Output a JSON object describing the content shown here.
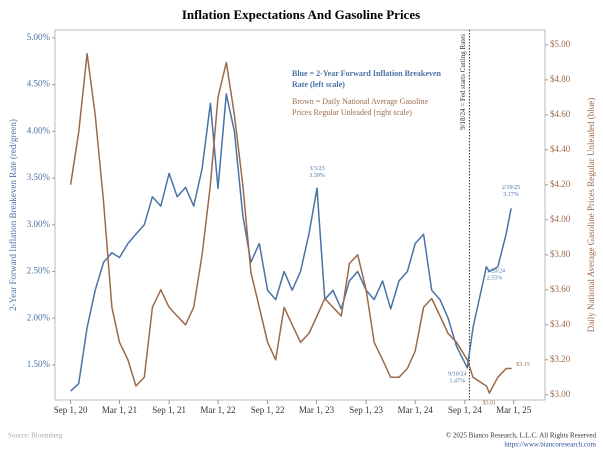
{
  "chart_data": {
    "type": "line",
    "title": "Inflation Expectations And Gasoline Prices",
    "y_label": "2-Year Forward Inflation Breakeven Rate (red/green)",
    "y2_label": "Daily National Average Gasoline Prices Regular Unleaded (blue)",
    "source": "Source: Bloomberg",
    "copyright": "© 2025 Bianco Research, L.L.C. All Rights Reserved",
    "url": "https://www.biancoresearch.com",
    "x": [
      "2020-09-01",
      "2020-10-01",
      "2020-11-01",
      "2020-12-01",
      "2021-01-01",
      "2021-02-01",
      "2021-03-01",
      "2021-04-01",
      "2021-05-01",
      "2021-06-01",
      "2021-07-01",
      "2021-08-01",
      "2021-09-01",
      "2021-10-01",
      "2021-11-01",
      "2021-12-01",
      "2022-01-01",
      "2022-02-01",
      "2022-03-01",
      "2022-04-01",
      "2022-05-01",
      "2022-06-01",
      "2022-07-01",
      "2022-08-01",
      "2022-09-01",
      "2022-10-01",
      "2022-11-01",
      "2022-12-01",
      "2023-01-01",
      "2023-02-01",
      "2023-03-03",
      "2023-04-01",
      "2023-05-01",
      "2023-06-01",
      "2023-07-01",
      "2023-08-01",
      "2023-09-01",
      "2023-10-01",
      "2023-11-01",
      "2023-12-01",
      "2024-01-01",
      "2024-02-01",
      "2024-03-01",
      "2024-04-01",
      "2024-05-01",
      "2024-06-01",
      "2024-07-01",
      "2024-08-01",
      "2024-09-10",
      "2024-10-01",
      "2024-11-20",
      "2024-12-01",
      "2025-01-01",
      "2025-02-01",
      "2025-02-19"
    ],
    "xlim": [
      "2020-07-05",
      "2025-06-25"
    ],
    "xticks": [
      {
        "value": "2020-09-01",
        "label": "Sep 1, 20"
      },
      {
        "value": "2021-03-01",
        "label": "Mar 1, 21"
      },
      {
        "value": "2021-09-01",
        "label": "Sep 1, 21"
      },
      {
        "value": "2022-03-01",
        "label": "Mar 1, 22"
      },
      {
        "value": "2022-09-01",
        "label": "Sep 1, 22"
      },
      {
        "value": "2023-03-01",
        "label": "Mar 1, 23"
      },
      {
        "value": "2023-09-01",
        "label": "Sep 1, 23"
      },
      {
        "value": "2024-03-01",
        "label": "Mar 1, 24"
      },
      {
        "value": "2024-09-01",
        "label": "Sep 1, 24"
      },
      {
        "value": "2025-03-01",
        "label": "Mar 1, 25"
      }
    ],
    "ylim": [
      1.125,
      5.085
    ],
    "yticks": [
      {
        "value": 1.5,
        "label": "1.50%"
      },
      {
        "value": 2,
        "label": "2.00%"
      },
      {
        "value": 2.5,
        "label": "2.50%"
      },
      {
        "value": 3,
        "label": "3.00%"
      },
      {
        "value": 3.5,
        "label": "3.50%"
      },
      {
        "value": 4,
        "label": "4.00%"
      },
      {
        "value": 4.5,
        "label": "4.50%"
      },
      {
        "value": 5,
        "label": "5.00%"
      }
    ],
    "y2lim": [
      2.97,
      5.085
    ],
    "y2ticks": [
      {
        "value": 3,
        "label": "$3.00"
      },
      {
        "value": 3.2,
        "label": "$3.20"
      },
      {
        "value": 3.4,
        "label": "$3.40"
      },
      {
        "value": 3.6,
        "label": "$3.60"
      },
      {
        "value": 3.8,
        "label": "$3.80"
      },
      {
        "value": 4,
        "label": "$4.00"
      },
      {
        "value": 4.2,
        "label": "$4.20"
      },
      {
        "value": 4.4,
        "label": "$4.40"
      },
      {
        "value": 4.6,
        "label": "$4.60"
      },
      {
        "value": 4.8,
        "label": "$4.80"
      },
      {
        "value": 5,
        "label": "$5.00"
      }
    ],
    "series": [
      {
        "name": "Blue = 2-Year Forward Inflation Breakeven Rate (left scale)",
        "color": "#4a72a6",
        "values": [
          1.22,
          1.3,
          1.9,
          2.3,
          2.6,
          2.7,
          2.65,
          2.8,
          2.9,
          3.0,
          3.3,
          3.2,
          3.55,
          3.3,
          3.4,
          3.2,
          3.6,
          4.3,
          3.39,
          4.4,
          4.0,
          3.1,
          2.6,
          2.8,
          2.3,
          2.2,
          2.5,
          2.3,
          2.5,
          2.9,
          3.39,
          2.2,
          2.3,
          2.1,
          2.4,
          2.5,
          2.3,
          2.2,
          2.4,
          2.1,
          2.4,
          2.5,
          2.8,
          2.9,
          2.3,
          2.2,
          2.0,
          1.7,
          1.47,
          1.9,
          2.55,
          2.5,
          2.55,
          2.9,
          3.17
        ]
      },
      {
        "name": "Brown = Daily National Average Gasoline Prices Regular Unleaded (right scale)",
        "color": "#9b6a4b",
        "axis": "y2",
        "values": [
          4.2,
          4.5,
          4.95,
          4.6,
          4.1,
          3.5,
          3.3,
          3.2,
          3.05,
          3.1,
          3.5,
          3.6,
          3.5,
          3.45,
          3.4,
          3.5,
          3.8,
          4.2,
          4.7,
          4.9,
          4.6,
          4.2,
          3.7,
          3.5,
          3.3,
          3.2,
          3.5,
          3.4,
          3.3,
          3.35,
          3.45,
          3.55,
          3.5,
          3.45,
          3.75,
          3.8,
          3.6,
          3.3,
          3.2,
          3.1,
          3.1,
          3.15,
          3.25,
          3.5,
          3.55,
          3.45,
          3.35,
          3.3,
          3.2,
          3.1,
          3.05,
          3.01,
          3.1,
          3.15,
          3.15
        ]
      }
    ],
    "vline": {
      "x": "2024-09-18",
      "label": "9/18/24 = Fed starts Cutting Rates"
    },
    "annotations": [
      {
        "x": "2023-03-03",
        "y": 3.39,
        "label": [
          "3/3/23",
          "3.39%"
        ]
      },
      {
        "x": "2024-09-10",
        "y": 1.47,
        "label": [
          "9/10/24",
          "1.47%"
        ]
      },
      {
        "x": "2024-11-20",
        "y": 2.55,
        "label": [
          "11/20/24",
          "2.55%"
        ]
      },
      {
        "x": "2025-02-19",
        "y": 3.17,
        "label": [
          "2/19/25",
          "3.17%"
        ]
      },
      {
        "x": "2024-12-01",
        "y": 3.01,
        "axis": "y2",
        "label": [
          "$3.01"
        ]
      },
      {
        "x": "2025-02-19",
        "y": 3.15,
        "axis": "y2",
        "label": [
          "$3.15"
        ]
      }
    ]
  }
}
